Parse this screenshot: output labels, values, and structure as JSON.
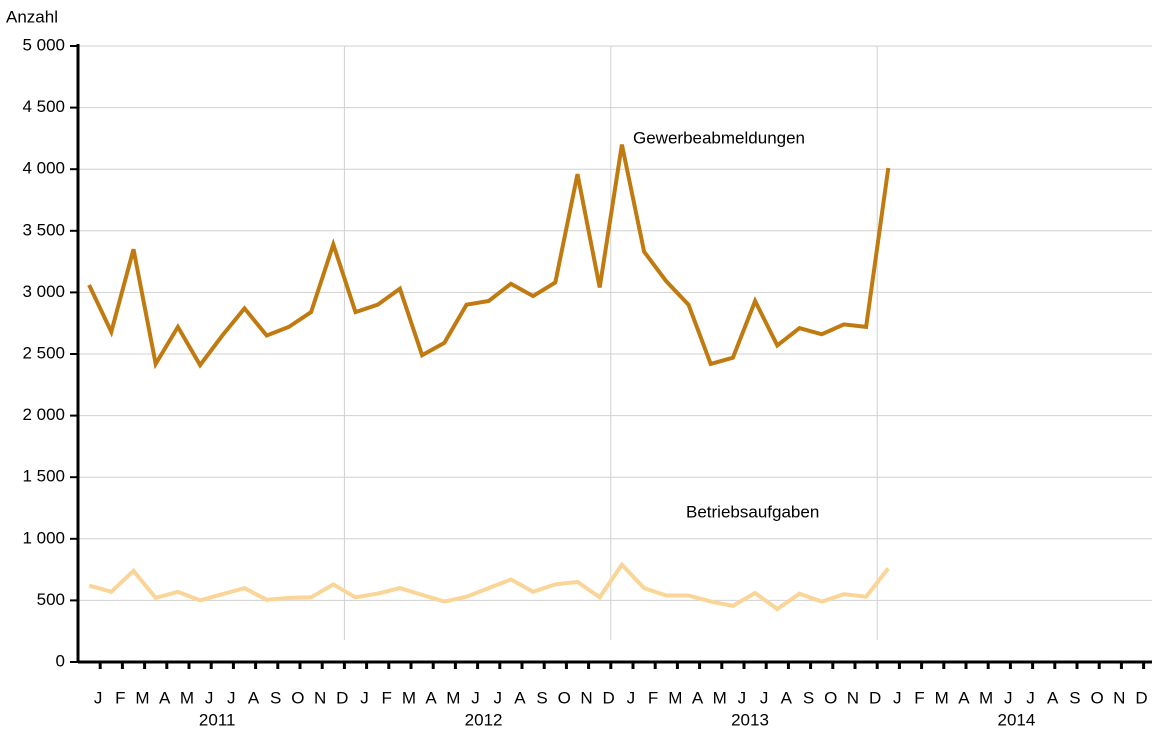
{
  "chart_data": {
    "type": "line",
    "y_label": "Anzahl",
    "categories": [
      "J",
      "F",
      "M",
      "A",
      "M",
      "J",
      "J",
      "A",
      "S",
      "O",
      "N",
      "D",
      "J",
      "F",
      "M",
      "A",
      "M",
      "J",
      "J",
      "A",
      "S",
      "O",
      "N",
      "D",
      "J",
      "F",
      "M",
      "A",
      "M",
      "J",
      "J",
      "A",
      "S",
      "O",
      "N",
      "D",
      "J",
      "F",
      "M",
      "A",
      "M",
      "J",
      "J",
      "A",
      "S",
      "O",
      "N",
      "D"
    ],
    "years": [
      "2011",
      "2012",
      "2013",
      "2014"
    ],
    "series": [
      {
        "name": "Gewerbeabmeldungen",
        "color": "#c07a10",
        "values": [
          3060,
          2680,
          3350,
          2420,
          2720,
          2410,
          2650,
          2870,
          2650,
          2720,
          2840,
          3390,
          2840,
          2900,
          3030,
          2490,
          2590,
          2900,
          2930,
          3070,
          2970,
          3080,
          3960,
          3040,
          4200,
          3330,
          3090,
          2900,
          2420,
          2470,
          2930,
          2570,
          2710,
          2660,
          2740,
          2720,
          4010,
          null,
          null,
          null,
          null,
          null,
          null,
          null,
          null,
          null,
          null,
          null
        ]
      },
      {
        "name": "Betriebsaufgaben",
        "color": "#fad597",
        "values": [
          620,
          570,
          740,
          520,
          570,
          500,
          550,
          600,
          505,
          520,
          525,
          630,
          525,
          555,
          600,
          545,
          490,
          530,
          600,
          670,
          570,
          630,
          650,
          525,
          790,
          600,
          540,
          540,
          490,
          455,
          560,
          430,
          555,
          490,
          550,
          530,
          760,
          null,
          null,
          null,
          null,
          null,
          null,
          null,
          null,
          null,
          null,
          null
        ]
      }
    ],
    "ylim": [
      0,
      5000
    ],
    "yticks": [
      0,
      500,
      {
        "value": 1000,
        "label": "1 000"
      },
      {
        "value": 1500,
        "label": "1 500"
      },
      {
        "value": 2000,
        "label": "2 000"
      },
      {
        "value": 2500,
        "label": "2 500"
      },
      {
        "value": 3000,
        "label": "3 000"
      },
      {
        "value": 3500,
        "label": "3 500"
      },
      {
        "value": 4000,
        "label": "4 000"
      },
      {
        "value": 4500,
        "label": "4 500"
      },
      {
        "value": 5000,
        "label": "5 000"
      }
    ],
    "grid": true
  }
}
